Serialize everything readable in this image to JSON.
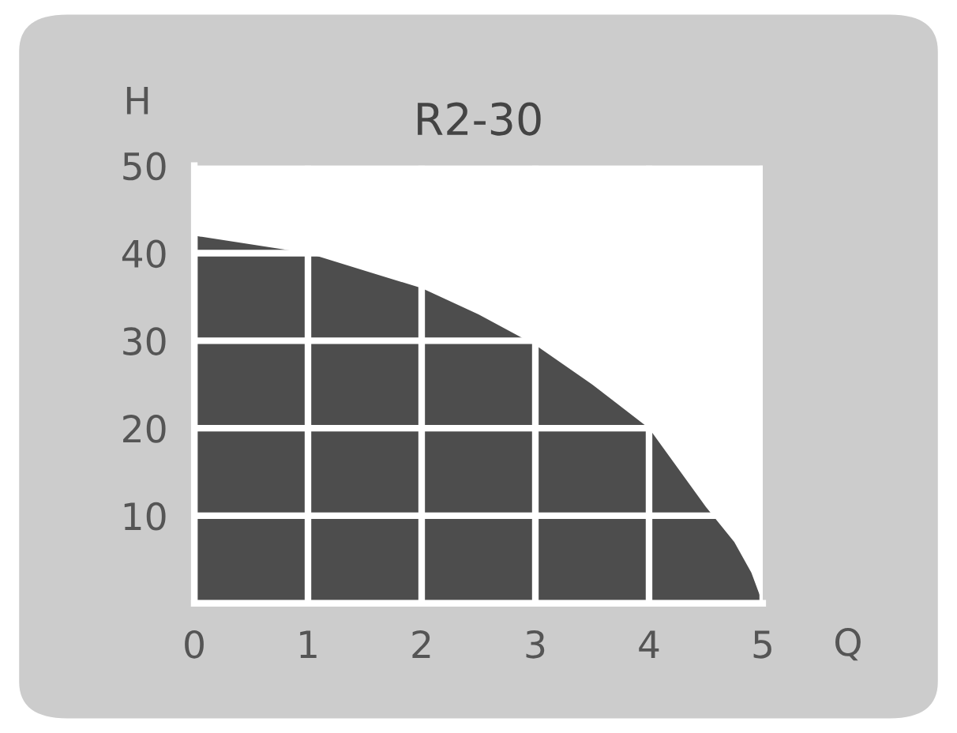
{
  "chart_data": {
    "type": "area",
    "title": "R2-30",
    "xlabel": "Q",
    "ylabel": "H",
    "x": [
      0,
      1,
      1.5,
      2,
      2.5,
      3,
      3.5,
      4,
      4.5,
      4.75,
      4.9,
      5
    ],
    "series": [
      {
        "color": "#4d4d4d",
        "values": [
          42,
          40,
          38,
          36,
          33,
          29.5,
          25,
          20,
          11,
          7,
          3.5,
          0
        ]
      }
    ],
    "xlim": [
      0,
      5
    ],
    "ylim": [
      0,
      50
    ],
    "xticks": [
      0,
      1,
      2,
      3,
      4,
      5
    ],
    "yticks": [
      10,
      20,
      30,
      40,
      50
    ],
    "grid": true,
    "legend": false
  }
}
